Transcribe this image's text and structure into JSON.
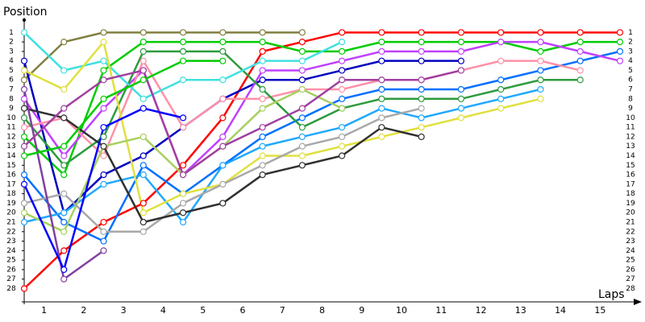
{
  "chart_data": {
    "type": "line",
    "y_label": "Position",
    "x_label": "Laps",
    "xlim": [
      0,
      15.5
    ],
    "ylim": [
      29.4,
      -0.3
    ],
    "xticks": [
      {
        "value": 0.5,
        "label": "1"
      },
      {
        "value": 1.5,
        "label": "2"
      },
      {
        "value": 2.5,
        "label": "3"
      },
      {
        "value": 3.5,
        "label": "4"
      },
      {
        "value": 4.5,
        "label": "5"
      },
      {
        "value": 5.5,
        "label": "6"
      },
      {
        "value": 6.5,
        "label": "7"
      },
      {
        "value": 7.5,
        "label": "8"
      },
      {
        "value": 8.5,
        "label": "9"
      },
      {
        "value": 9.5,
        "label": "10"
      },
      {
        "value": 10.5,
        "label": "11"
      },
      {
        "value": 11.5,
        "label": "12"
      },
      {
        "value": 12.5,
        "label": "13"
      },
      {
        "value": 13.5,
        "label": "14"
      },
      {
        "value": 14.5,
        "label": "15"
      }
    ],
    "yticks": [
      1,
      2,
      3,
      4,
      5,
      6,
      7,
      8,
      9,
      10,
      11,
      12,
      13,
      14,
      15,
      16,
      17,
      18,
      19,
      20,
      21,
      22,
      23,
      24,
      25,
      26,
      27,
      28
    ],
    "x": [
      0,
      1,
      2,
      3,
      4,
      5,
      6,
      7,
      8,
      9,
      10,
      11,
      12,
      13,
      14,
      15
    ],
    "series": [
      {
        "color": "#ff0000",
        "values": [
          28,
          24,
          21,
          19,
          15,
          10,
          3,
          2,
          1,
          1,
          1,
          1,
          1,
          1,
          1,
          1
        ]
      },
      {
        "color": "#00cc00",
        "values": [
          12,
          16,
          5,
          2,
          2,
          2,
          2,
          3,
          3,
          2,
          2,
          2,
          2,
          3,
          2,
          2
        ]
      },
      {
        "color": "#808040",
        "values": [
          6,
          2,
          1,
          1,
          1,
          1,
          1,
          1,
          null,
          null,
          null,
          null,
          null,
          null,
          null,
          null
        ]
      },
      {
        "color": "#0000c0",
        "values": [
          4,
          20,
          16,
          14,
          11,
          8,
          6,
          6,
          5,
          4,
          4,
          4,
          null,
          null,
          null,
          null
        ]
      },
      {
        "color": "#0070ff",
        "values": [
          16,
          21,
          23,
          15,
          18,
          15,
          12,
          10,
          8,
          7,
          7,
          7,
          6,
          5,
          4,
          3
        ]
      },
      {
        "color": "#c040ff",
        "values": [
          8,
          14,
          9,
          5,
          16,
          12,
          5,
          5,
          4,
          3,
          3,
          3,
          2,
          2,
          3,
          4
        ]
      },
      {
        "color": "#ff90a8",
        "values": [
          11,
          10,
          14,
          4,
          11,
          8,
          8,
          7,
          7,
          6,
          6,
          5,
          4,
          4,
          5,
          null
        ]
      },
      {
        "color": "#2e9b3e",
        "values": [
          10,
          15,
          12,
          3,
          3,
          3,
          7,
          11,
          9,
          8,
          8,
          8,
          7,
          6,
          6,
          null
        ]
      },
      {
        "color": "#40e0e0",
        "values": [
          1,
          5,
          4,
          8,
          6,
          6,
          4,
          4,
          2,
          null,
          null,
          null,
          null,
          null,
          null,
          null
        ]
      },
      {
        "color": "#20a8ff",
        "values": [
          21,
          20,
          17,
          16,
          21,
          15,
          13,
          12,
          11,
          9,
          10,
          9,
          8,
          7,
          null,
          null
        ]
      },
      {
        "color": "#e0e040",
        "values": [
          5,
          7,
          2,
          20,
          18,
          17,
          14,
          14,
          13,
          12,
          11,
          10,
          9,
          8,
          null,
          null
        ]
      },
      {
        "color": "#a8d060",
        "values": [
          20,
          22,
          13,
          12,
          16,
          13,
          9,
          7,
          9,
          null,
          null,
          null,
          null,
          null,
          null,
          null
        ]
      },
      {
        "color": "#a8a8a8",
        "values": [
          19,
          18,
          22,
          22,
          19,
          17,
          15,
          13,
          12,
          10,
          9,
          null,
          null,
          null,
          null,
          null
        ]
      },
      {
        "color": "#303030",
        "values": [
          9,
          10,
          13,
          21,
          20,
          19,
          16,
          15,
          14,
          11,
          12,
          null,
          null,
          null,
          null,
          null
        ]
      },
      {
        "color": "#8040a0",
        "values": [
          7,
          27,
          24,
          null,
          null,
          null,
          null,
          null,
          null,
          null,
          null,
          null,
          null,
          null,
          null,
          null
        ]
      },
      {
        "color": "#a040a0",
        "values": [
          13,
          9,
          6,
          5,
          16,
          13,
          11,
          9,
          6,
          6,
          6,
          5,
          null,
          null,
          null,
          null
        ]
      },
      {
        "color": "#0000ff",
        "values": [
          17,
          26,
          11,
          9,
          10,
          null,
          null,
          null,
          null,
          null,
          null,
          null,
          null,
          null,
          null,
          null
        ]
      },
      {
        "color": "#00cc00",
        "values": [
          14,
          13,
          8,
          6,
          4,
          4,
          null,
          null,
          null,
          null,
          null,
          null,
          null,
          null,
          null,
          null
        ]
      }
    ]
  }
}
